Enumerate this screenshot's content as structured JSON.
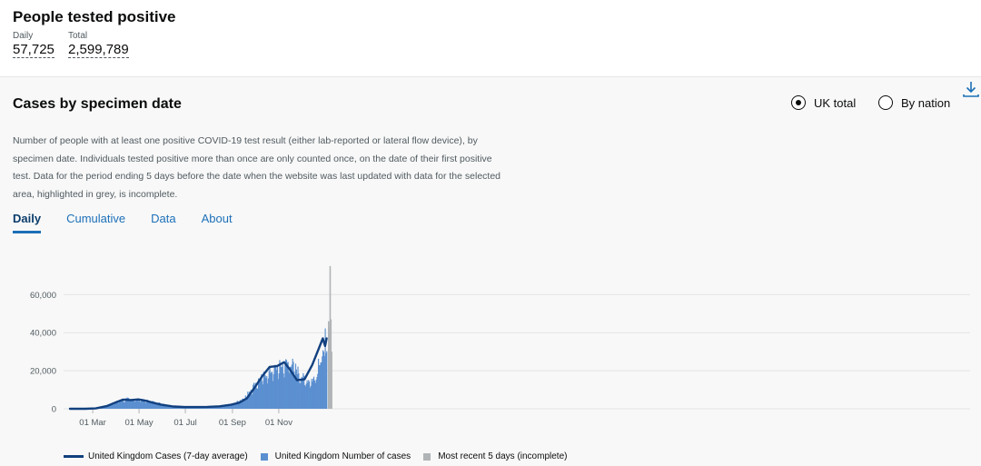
{
  "headline": {
    "title": "People tested positive",
    "daily_label": "Daily",
    "daily_value": "57,725",
    "total_label": "Total",
    "total_value": "2,599,789"
  },
  "card": {
    "title": "Cases by specimen date",
    "description": "Number of people with at least one positive COVID-19 test result (either lab-reported or lateral flow device), by specimen date. Individuals tested positive more than once are only counted once, on the date of their first positive test. Data for the period ending 5 days before the date when the website was last updated with data for the selected area, highlighted in grey, is incomplete.",
    "radio_uk": "UK total",
    "radio_nation": "By nation",
    "selected": "UK total",
    "tabs": [
      "Daily",
      "Cumulative",
      "Data",
      "About"
    ],
    "active_tab": "Daily",
    "download_icon": "download-icon"
  },
  "colors": {
    "average_line": "#12407f",
    "bars": "#5b8fd0",
    "incomplete": "#b1b4b6"
  },
  "chart_data": {
    "type": "bar",
    "x_axis": "date",
    "x_ticks": [
      "01 Mar",
      "01 May",
      "01 Jul",
      "01 Sep",
      "01 Nov"
    ],
    "y_ticks": [
      "0",
      "20,000",
      "40,000",
      "60,000"
    ],
    "ylim": [
      0,
      70000
    ],
    "series": [
      {
        "name": "United Kingdom Cases (7-day average)",
        "kind": "line",
        "points": [
          [
            "2020-01-31",
            0
          ],
          [
            "2020-02-20",
            10
          ],
          [
            "2020-03-05",
            200
          ],
          [
            "2020-03-20",
            1500
          ],
          [
            "2020-04-01",
            3500
          ],
          [
            "2020-04-10",
            4800
          ],
          [
            "2020-04-20",
            4600
          ],
          [
            "2020-04-30",
            4900
          ],
          [
            "2020-05-10",
            4200
          ],
          [
            "2020-05-20",
            3100
          ],
          [
            "2020-05-30",
            2200
          ],
          [
            "2020-06-15",
            1200
          ],
          [
            "2020-06-30",
            900
          ],
          [
            "2020-07-15",
            900
          ],
          [
            "2020-07-30",
            1000
          ],
          [
            "2020-08-15",
            1300
          ],
          [
            "2020-08-30",
            2100
          ],
          [
            "2020-09-10",
            3200
          ],
          [
            "2020-09-20",
            5500
          ],
          [
            "2020-09-30",
            11000
          ],
          [
            "2020-10-10",
            17000
          ],
          [
            "2020-10-20",
            22000
          ],
          [
            "2020-10-30",
            22500
          ],
          [
            "2020-11-08",
            24500
          ],
          [
            "2020-11-15",
            21000
          ],
          [
            "2020-11-25",
            15000
          ],
          [
            "2020-12-05",
            15500
          ],
          [
            "2020-12-15",
            23000
          ],
          [
            "2020-12-23",
            31000
          ],
          [
            "2020-12-29",
            37000
          ],
          [
            "2021-01-01",
            33000
          ],
          [
            "2021-01-03",
            37000
          ]
        ]
      },
      {
        "name": "United Kingdom Number of cases",
        "kind": "bar",
        "from": "2020-01-31",
        "to": "2021-01-03",
        "shape_points": [
          [
            0,
            0
          ],
          [
            30,
            50
          ],
          [
            40,
            600
          ],
          [
            55,
            2400
          ],
          [
            65,
            4200
          ],
          [
            75,
            5200
          ],
          [
            90,
            4800
          ],
          [
            100,
            4400
          ],
          [
            115,
            3200
          ],
          [
            135,
            1700
          ],
          [
            160,
            1000
          ],
          [
            195,
            1200
          ],
          [
            215,
            2600
          ],
          [
            230,
            6000
          ],
          [
            245,
            14000
          ],
          [
            260,
            19000
          ],
          [
            275,
            22500
          ],
          [
            285,
            24000
          ],
          [
            290,
            25000
          ],
          [
            300,
            20000
          ],
          [
            310,
            15000
          ],
          [
            320,
            15500
          ],
          [
            330,
            22000
          ],
          [
            336,
            30000
          ],
          [
            339,
            40000
          ],
          [
            341,
            45000
          ],
          [
            343,
            36000
          ],
          [
            345,
            13000
          ],
          [
            348,
            40000
          ]
        ]
      },
      {
        "name": "Most recent 5 days (incomplete)",
        "kind": "bar",
        "incomplete": true,
        "from": "2021-01-04",
        "to": "2021-01-08",
        "values": [
          46000,
          43000,
          75000,
          47000,
          30000
        ]
      }
    ]
  }
}
